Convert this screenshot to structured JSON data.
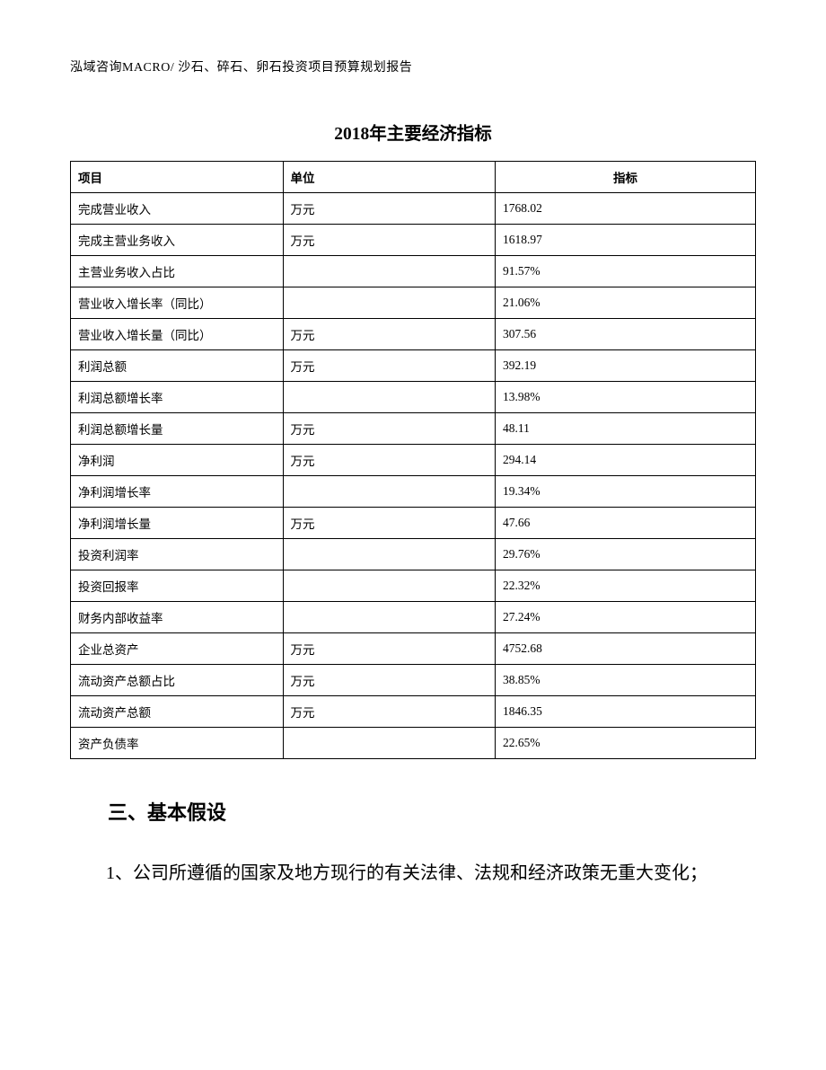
{
  "header": {
    "text": "泓域咨询MACRO/    沙石、碎石、卵石投资项目预算规划报告"
  },
  "table": {
    "title": "2018年主要经济指标",
    "columns": {
      "item": "项目",
      "unit": "单位",
      "value": "指标"
    },
    "rows": [
      {
        "item": "完成营业收入",
        "unit": "万元",
        "value": "1768.02"
      },
      {
        "item": "完成主营业务收入",
        "unit": "万元",
        "value": "1618.97"
      },
      {
        "item": "主营业务收入占比",
        "unit": "",
        "value": "91.57%"
      },
      {
        "item": "营业收入增长率（同比）",
        "unit": "",
        "value": "21.06%"
      },
      {
        "item": "营业收入增长量（同比）",
        "unit": "万元",
        "value": "307.56"
      },
      {
        "item": "利润总额",
        "unit": "万元",
        "value": "392.19"
      },
      {
        "item": "利润总额增长率",
        "unit": "",
        "value": "13.98%"
      },
      {
        "item": "利润总额增长量",
        "unit": "万元",
        "value": "48.11"
      },
      {
        "item": "净利润",
        "unit": "万元",
        "value": "294.14"
      },
      {
        "item": "净利润增长率",
        "unit": "",
        "value": "19.34%"
      },
      {
        "item": "净利润增长量",
        "unit": "万元",
        "value": "47.66"
      },
      {
        "item": "投资利润率",
        "unit": "",
        "value": "29.76%"
      },
      {
        "item": "投资回报率",
        "unit": "",
        "value": "22.32%"
      },
      {
        "item": "财务内部收益率",
        "unit": "",
        "value": "27.24%"
      },
      {
        "item": "企业总资产",
        "unit": "万元",
        "value": "4752.68"
      },
      {
        "item": "流动资产总额占比",
        "unit": "万元",
        "value": "38.85%"
      },
      {
        "item": "流动资产总额",
        "unit": "万元",
        "value": "1846.35"
      },
      {
        "item": "资产负债率",
        "unit": "",
        "value": "22.65%"
      }
    ]
  },
  "section": {
    "heading": "三、基本假设",
    "paragraph": "1、公司所遵循的国家及地方现行的有关法律、法规和经济政策无重大变化；"
  }
}
